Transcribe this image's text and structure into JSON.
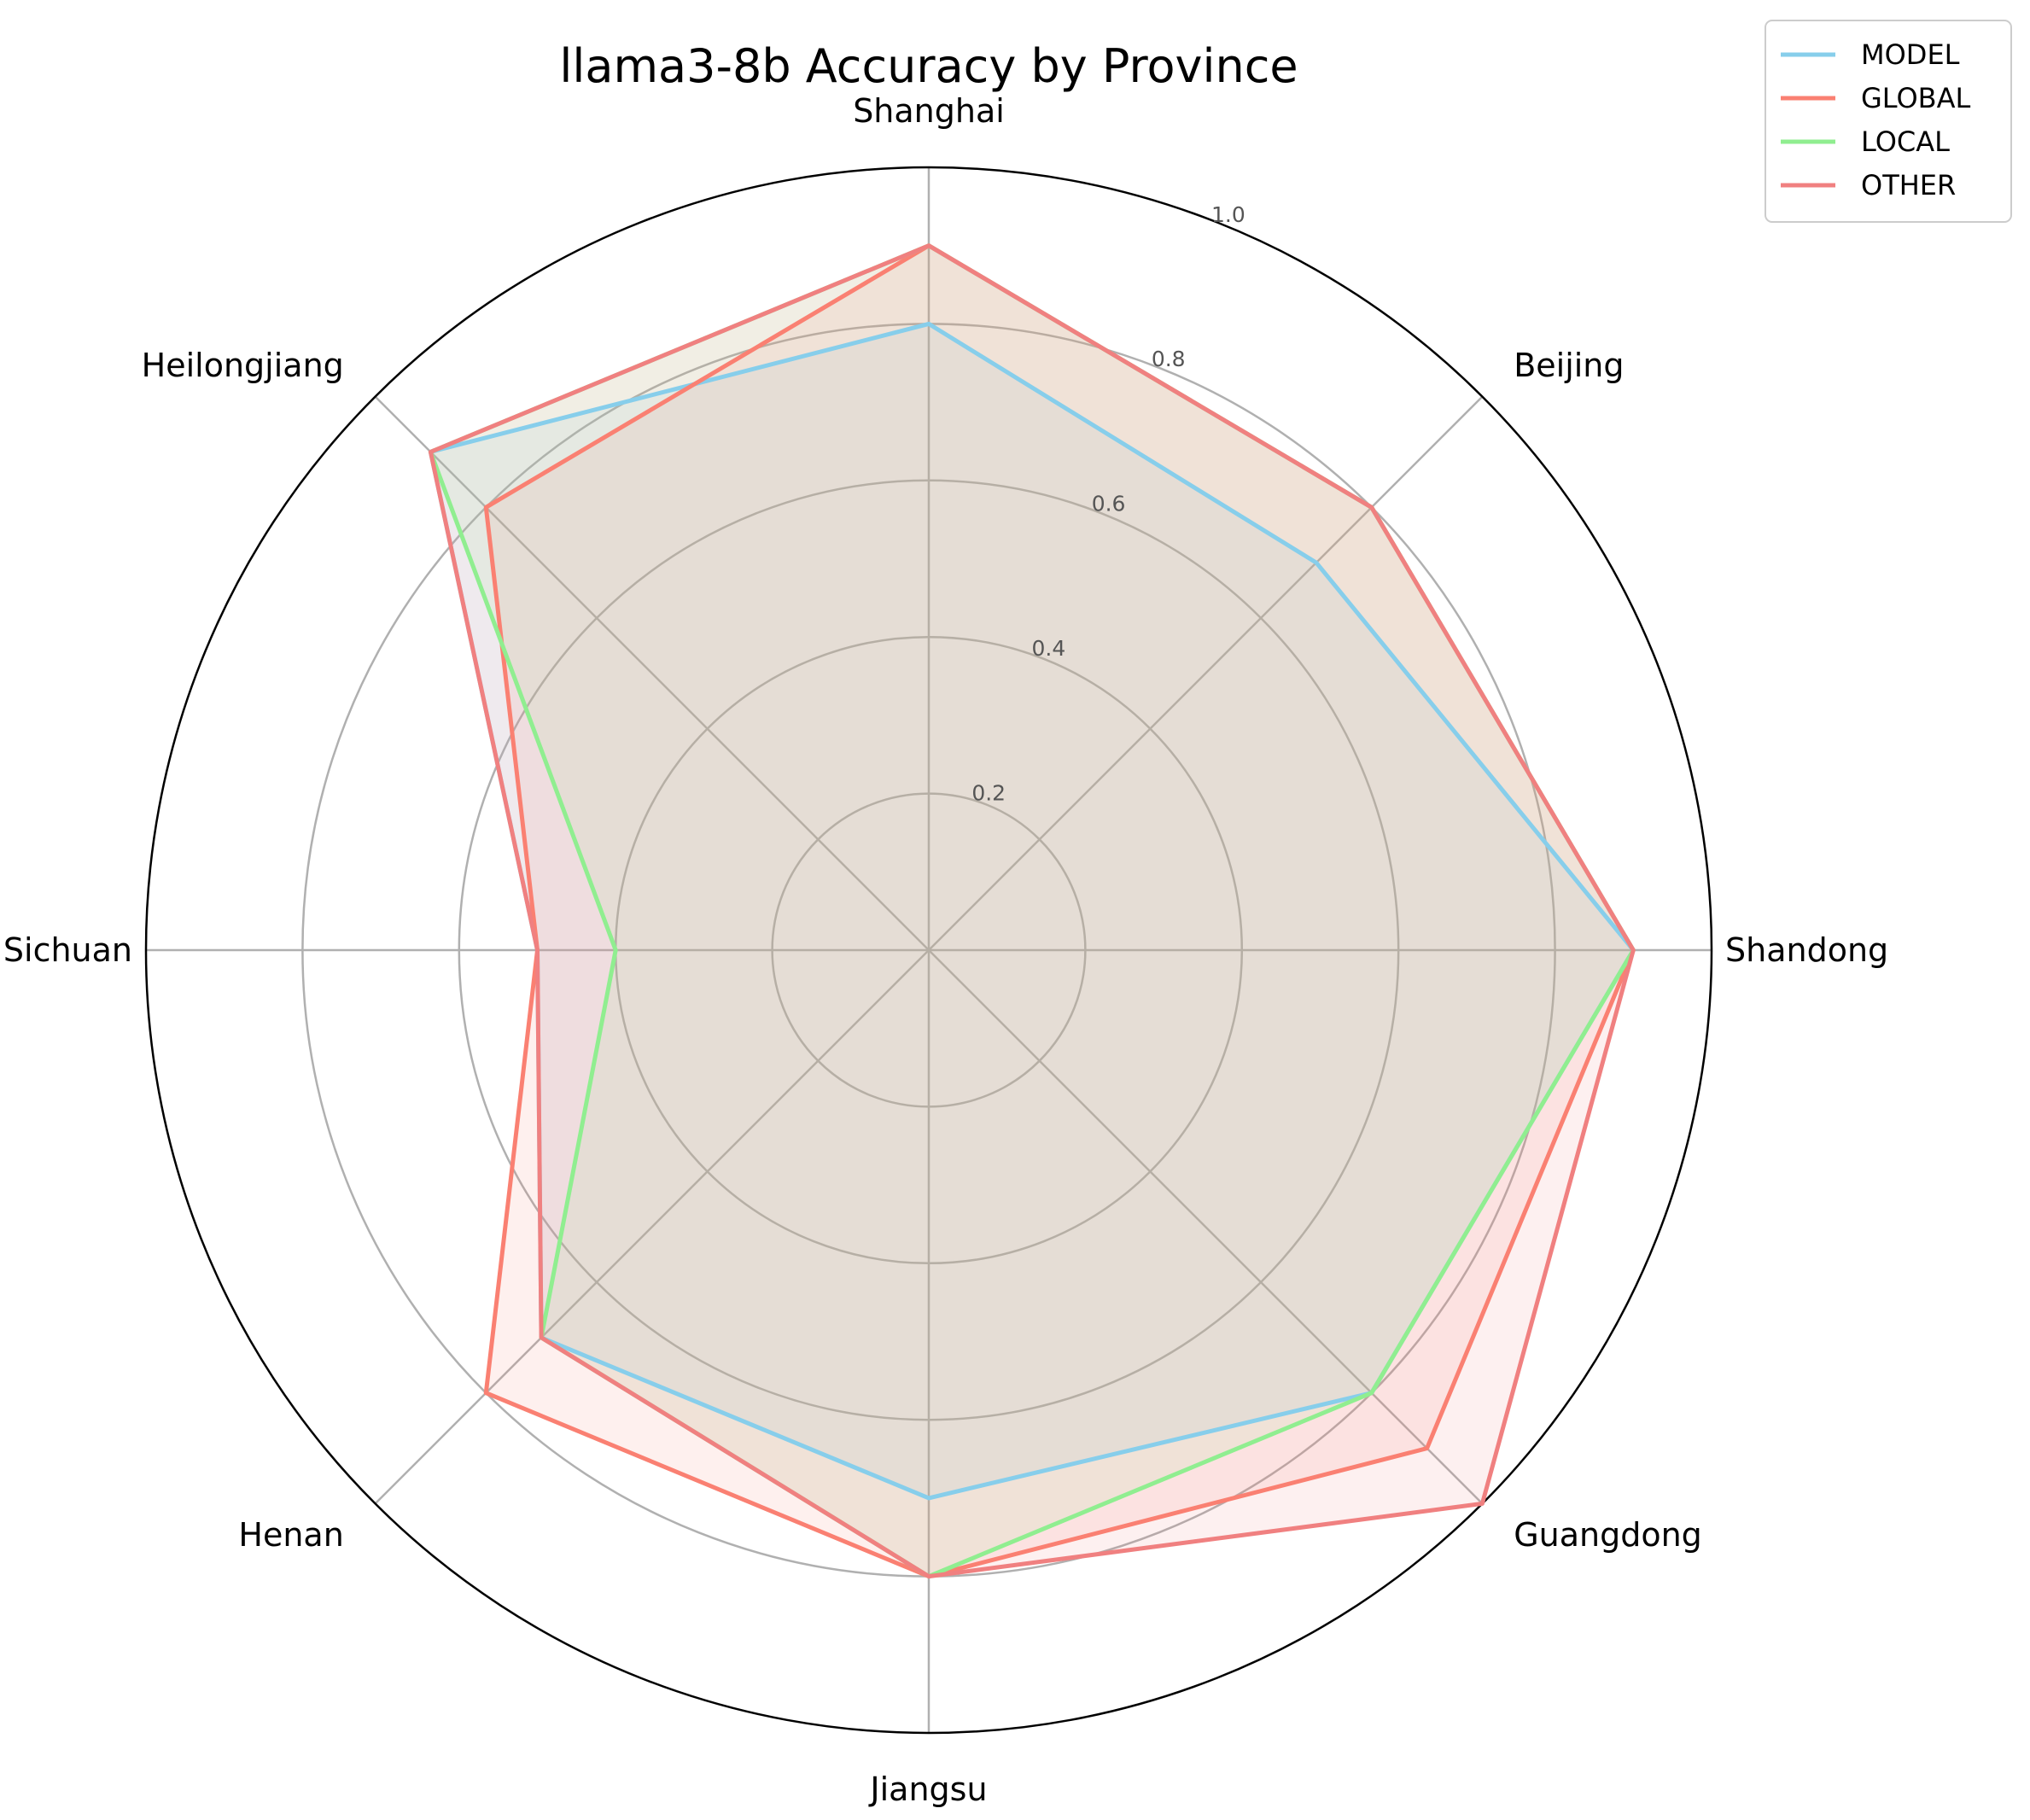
{
  "chart_data": {
    "type": "radar",
    "title": "llama3-8b Accuracy by Province",
    "categories": [
      "Shanghai",
      "Beijing",
      "Shandong",
      "Guangdong",
      "Jiangsu",
      "Henan",
      "Sichuan",
      "Heilongjiang"
    ],
    "rlim": [
      0,
      1.0
    ],
    "rticks": [
      "0.2",
      "0.4",
      "0.6",
      "0.8",
      "1.0"
    ],
    "grid": true,
    "legend_position": "top-right",
    "series": [
      {
        "name": "MODEL",
        "color": "#87CEEB",
        "values": [
          0.8,
          0.7,
          0.9,
          0.8,
          0.7,
          0.7,
          0.5,
          0.9
        ]
      },
      {
        "name": "GLOBAL",
        "color": "#FA8072",
        "values": [
          0.9,
          0.8,
          0.9,
          0.9,
          0.8,
          0.8,
          0.5,
          0.8
        ]
      },
      {
        "name": "LOCAL",
        "color": "#90EE90",
        "values": [
          0.9,
          0.8,
          0.9,
          0.8,
          0.8,
          0.7,
          0.4,
          0.9
        ]
      },
      {
        "name": "OTHER",
        "color": "#F08080",
        "values": [
          0.9,
          0.8,
          0.9,
          1.0,
          0.8,
          0.7,
          0.5,
          0.9
        ]
      }
    ]
  }
}
